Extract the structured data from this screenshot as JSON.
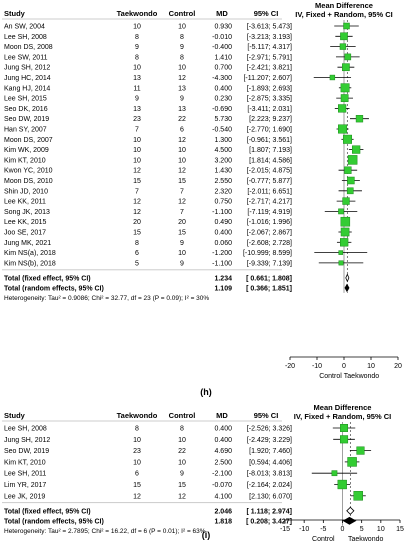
{
  "chart_data": [
    {
      "type": "forest",
      "panel_label": "(h)",
      "headers": {
        "study": "Study",
        "taekwondo": "Taekwondo",
        "control": "Control",
        "md": "MD",
        "ci": "95% CI",
        "plot_title_1": "Mean Difference",
        "plot_title_2": "IV, Fixed + Random, 95% CI"
      },
      "xlim": [
        -20,
        20
      ],
      "xticks": [
        -20,
        -10,
        0,
        10,
        20
      ],
      "axis_left_label": "Control",
      "axis_right_label": "Taekwondo",
      "studies": [
        {
          "study": "An SW, 2004",
          "t": "10",
          "c": "10",
          "md": "0.930",
          "ci": "[-3.613; 5.473]",
          "md_v": 0.93,
          "lo": -3.613,
          "hi": 5.473
        },
        {
          "study": "Lee SH, 2008",
          "t": "8",
          "c": "8",
          "md": "-0.010",
          "ci": "[-3.213; 3.193]",
          "md_v": -0.01,
          "lo": -3.213,
          "hi": 3.193
        },
        {
          "study": "Moon DS, 2008",
          "t": "9",
          "c": "9",
          "md": "-0.400",
          "ci": "[-5.117; 4.317]",
          "md_v": -0.4,
          "lo": -5.117,
          "hi": 4.317
        },
        {
          "study": "Lee SW, 2011",
          "t": "8",
          "c": "8",
          "md": "1.410",
          "ci": "[-2.971; 5.791]",
          "md_v": 1.41,
          "lo": -2.971,
          "hi": 5.791
        },
        {
          "study": "Jung SH, 2012",
          "t": "10",
          "c": "10",
          "md": "0.700",
          "ci": "[-2.421; 3.821]",
          "md_v": 0.7,
          "lo": -2.421,
          "hi": 3.821
        },
        {
          "study": "Jung HC, 2014",
          "t": "13",
          "c": "12",
          "md": "-4.300",
          "ci": "[-11.207; 2.607]",
          "md_v": -4.3,
          "lo": -11.207,
          "hi": 2.607
        },
        {
          "study": "Kang HJ, 2014",
          "t": "11",
          "c": "13",
          "md": "0.400",
          "ci": "[-1.893; 2.693]",
          "md_v": 0.4,
          "lo": -1.893,
          "hi": 2.693
        },
        {
          "study": "Lee SH, 2015",
          "t": "9",
          "c": "9",
          "md": "0.230",
          "ci": "[-2.875; 3.335]",
          "md_v": 0.23,
          "lo": -2.875,
          "hi": 3.335
        },
        {
          "study": "Seo DK, 2016",
          "t": "13",
          "c": "13",
          "md": "-0.690",
          "ci": "[-3.411; 2.031]",
          "md_v": -0.69,
          "lo": -3.411,
          "hi": 2.031
        },
        {
          "study": "Seo DW, 2019",
          "t": "23",
          "c": "22",
          "md": "5.730",
          "ci": "[2.223; 9.237]",
          "md_v": 5.73,
          "lo": 2.223,
          "hi": 9.237
        },
        {
          "study": "Han SY, 2007",
          "t": "7",
          "c": "6",
          "md": "-0.540",
          "ci": "[-2.770; 1.690]",
          "md_v": -0.54,
          "lo": -2.77,
          "hi": 1.69
        },
        {
          "study": "Moon DS, 2007",
          "t": "10",
          "c": "12",
          "md": "1.300",
          "ci": "[-0.961; 3.561]",
          "md_v": 1.3,
          "lo": -0.961,
          "hi": 3.561
        },
        {
          "study": "Kim WK, 2009",
          "t": "10",
          "c": "10",
          "md": "4.500",
          "ci": "[1.807; 7.193]",
          "md_v": 4.5,
          "lo": 1.807,
          "hi": 7.193
        },
        {
          "study": "Kim KT, 2010",
          "t": "10",
          "c": "10",
          "md": "3.200",
          "ci": "[1.814; 4.586]",
          "md_v": 3.2,
          "lo": 1.814,
          "hi": 4.586
        },
        {
          "study": "Kwon YC, 2010",
          "t": "12",
          "c": "12",
          "md": "1.430",
          "ci": "[-2.015; 4.875]",
          "md_v": 1.43,
          "lo": -2.015,
          "hi": 4.875
        },
        {
          "study": "Moon DS, 2010",
          "t": "15",
          "c": "15",
          "md": "2.550",
          "ci": "[-0.777; 5.877]",
          "md_v": 2.55,
          "lo": -0.777,
          "hi": 5.877
        },
        {
          "study": "Shin JD, 2010",
          "t": "7",
          "c": "7",
          "md": "2.320",
          "ci": "[-2.011; 6.651]",
          "md_v": 2.32,
          "lo": -2.011,
          "hi": 6.651
        },
        {
          "study": "Lee KK, 2011",
          "t": "12",
          "c": "12",
          "md": "0.750",
          "ci": "[-2.717; 4.217]",
          "md_v": 0.75,
          "lo": -2.717,
          "hi": 4.217
        },
        {
          "study": "Song JK, 2013",
          "t": "12",
          "c": "7",
          "md": "-1.100",
          "ci": "[-7.119; 4.919]",
          "md_v": -1.1,
          "lo": -7.119,
          "hi": 4.919
        },
        {
          "study": "Lee KK, 2015",
          "t": "20",
          "c": "20",
          "md": "0.490",
          "ci": "[-1.016; 1.996]",
          "md_v": 0.49,
          "lo": -1.016,
          "hi": 1.996
        },
        {
          "study": "Joo SE, 2017",
          "t": "15",
          "c": "15",
          "md": "0.400",
          "ci": "[-2.067; 2.867]",
          "md_v": 0.4,
          "lo": -2.067,
          "hi": 2.867
        },
        {
          "study": "Jung MK, 2021",
          "t": "8",
          "c": "9",
          "md": "0.060",
          "ci": "[-2.608; 2.728]",
          "md_v": 0.06,
          "lo": -2.608,
          "hi": 2.728
        },
        {
          "study": "Kim NS(a), 2018",
          "t": "6",
          "c": "10",
          "md": "-1.200",
          "ci": "[-10.999; 8.599]",
          "md_v": -1.2,
          "lo": -10.999,
          "hi": 8.599
        },
        {
          "study": "Kim NS(b), 2018",
          "t": "5",
          "c": "9",
          "md": "-1.100",
          "ci": "[-9.339; 7.139]",
          "md_v": -1.1,
          "lo": -9.339,
          "hi": 7.139
        }
      ],
      "pooled": [
        {
          "label": "Total (fixed effect, 95% CI)",
          "md": "1.234",
          "ci": "[ 0.661; 1.808]",
          "md_v": 1.234,
          "lo": 0.661,
          "hi": 1.808
        },
        {
          "label": "Total (random effects, 95% CI)",
          "md": "1.109",
          "ci": "[ 0.366; 1.851]",
          "md_v": 1.109,
          "lo": 0.366,
          "hi": 1.851
        }
      ],
      "heterogeneity": "Heterogeneity: Tau² = 0.9086; Chi² = 32.77, df = 23 (P = 0.09); I² = 30%"
    },
    {
      "type": "forest",
      "panel_label": "(i)",
      "headers": {
        "study": "Study",
        "taekwondo": "Taekwondo",
        "control": "Control",
        "md": "MD",
        "ci": "95% CI",
        "plot_title_1": "Mean Difference",
        "plot_title_2": "IV, Fixed + Random, 95% CI"
      },
      "xlim": [
        -15,
        15
      ],
      "xticks": [
        -15,
        -10,
        -5,
        0,
        5,
        10,
        15
      ],
      "axis_left_label": "Control",
      "axis_right_label": "Taekwondo",
      "studies": [
        {
          "study": "Lee SH, 2008",
          "t": "8",
          "c": "8",
          "md": "0.400",
          "ci": "[-2.526; 3.326]",
          "md_v": 0.4,
          "lo": -2.526,
          "hi": 3.326
        },
        {
          "study": "Jung SH, 2012",
          "t": "10",
          "c": "10",
          "md": "0.400",
          "ci": "[-2.429; 3.229]",
          "md_v": 0.4,
          "lo": -2.429,
          "hi": 3.229
        },
        {
          "study": "Seo DW, 2019",
          "t": "23",
          "c": "22",
          "md": "4.690",
          "ci": "[1.920; 7.460]",
          "md_v": 4.69,
          "lo": 1.92,
          "hi": 7.46
        },
        {
          "study": "Kim KT, 2010",
          "t": "10",
          "c": "10",
          "md": "2.500",
          "ci": "[0.594; 4.406]",
          "md_v": 2.5,
          "lo": 0.594,
          "hi": 4.406
        },
        {
          "study": "Lee SH, 2011",
          "t": "6",
          "c": "9",
          "md": "-2.100",
          "ci": "[-8.013; 3.813]",
          "md_v": -2.1,
          "lo": -8.013,
          "hi": 3.813
        },
        {
          "study": "Lim YR, 2017",
          "t": "15",
          "c": "15",
          "md": "-0.070",
          "ci": "[-2.164; 2.024]",
          "md_v": -0.07,
          "lo": -2.164,
          "hi": 2.024
        },
        {
          "study": "Lee JK, 2019",
          "t": "12",
          "c": "12",
          "md": "4.100",
          "ci": "[2.130; 6.070]",
          "md_v": 4.1,
          "lo": 2.13,
          "hi": 6.07
        }
      ],
      "pooled": [
        {
          "label": "Total (fixed effect, 95% CI)",
          "md": "2.046",
          "ci": "[ 1.118; 2.974]",
          "md_v": 2.046,
          "lo": 1.118,
          "hi": 2.974
        },
        {
          "label": "Total (random effects, 95% CI)",
          "md": "1.818",
          "ci": "[ 0.208; 3.427]",
          "md_v": 1.818,
          "lo": 0.208,
          "hi": 3.427
        }
      ],
      "heterogeneity": "Heterogeneity: Tau² = 2.7895; Chi² = 16.22, df = 6 (P = 0.01); I² = 63%"
    }
  ],
  "colors": {
    "ci_line": "#000000",
    "box": "#33cc33",
    "box_fill_center": "#1a8a1a",
    "diamond": "#000000",
    "ref_line": "#888888",
    "pooled_line": "#444444"
  }
}
